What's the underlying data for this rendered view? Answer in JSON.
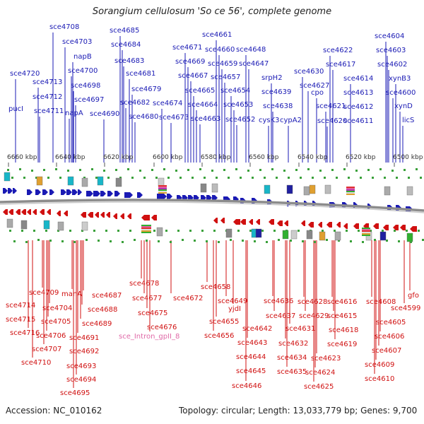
{
  "header": {
    "title": "Sorangium cellulosum 'So ce 56', complete genome"
  },
  "footer": {
    "accession": "Accession: NC_010162",
    "summary": "Topology: circular; Length: 13,033,779 bp; Genes: 9,700"
  },
  "scale": {
    "unit": "kbp",
    "ticks": [
      "6660 kbp",
      "6640 kbp",
      "6620 kbp",
      "6600 kbp",
      "6580 kbp",
      "6560 kbp",
      "6540 kbp",
      "6520 kbp",
      "6500 kbp"
    ]
  },
  "colors": {
    "forward": "#1a1ab4",
    "reverse": "#d01010",
    "rna_label": "#e06aa8",
    "genome_line": "#8c8c8c"
  },
  "top_labels": [
    "sce4708",
    "sce4703",
    "napB",
    "sce4700",
    "sce4698",
    "sce4697",
    "napA",
    "sce4690",
    "sce4720",
    "sce4713",
    "sce4712",
    "sce4711",
    "pucI",
    "sce4685",
    "sce4684",
    "sce4683",
    "sce4681",
    "sce4679",
    "sce4682",
    "sce4680",
    "sce4674",
    "sce4673",
    "sce4671",
    "sce4669",
    "sce4667",
    "sce4665",
    "sce4664",
    "sce4663",
    "sce4661",
    "sce4660",
    "sce4659",
    "sce4657",
    "sce4654",
    "sce4653",
    "sce4652",
    "sce4648",
    "sce4647",
    "srpH2",
    "sce4639",
    "sce4638",
    "cysK3",
    "cypA2",
    "sce4630",
    "sce4627",
    "cpo",
    "sce4622",
    "sce4617",
    "sce4621",
    "sce4620",
    "sce4614",
    "sce4613",
    "sce4612",
    "sce4611",
    "sce4604",
    "sce4603",
    "sce4602",
    "xynB3",
    "sce4600",
    "xynD",
    "licS"
  ],
  "bottom_labels": [
    "sce4709",
    "sce4714",
    "sce4715",
    "sce4716",
    "sce4704",
    "sce4705",
    "sce4706",
    "sce4707",
    "sce4710",
    "manA",
    "sce4687",
    "sce4688",
    "sce4689",
    "sce4691",
    "sce4692",
    "sce4693",
    "sce4694",
    "sce4695",
    "sce4678",
    "sce4677",
    "sce4675",
    "sce4676",
    "sce_Intron_gpII_8",
    "sce4672",
    "sce4658",
    "sce4655",
    "sce4656",
    "sce4649",
    "yjdI",
    "sce4642",
    "sce4643",
    "sce4644",
    "sce4645",
    "sce4646",
    "sce4636",
    "sce4637",
    "sce4631",
    "sce4632",
    "sce4634",
    "sce4635",
    "sce4628",
    "sce4629",
    "sce4623",
    "sce4624",
    "sce4625",
    "sce4616",
    "sce4615",
    "sce4618",
    "sce4619",
    "sce4608",
    "sce4605",
    "sce4606",
    "sce4607",
    "sce4609",
    "sce4610",
    "gfo",
    "sce4599"
  ]
}
